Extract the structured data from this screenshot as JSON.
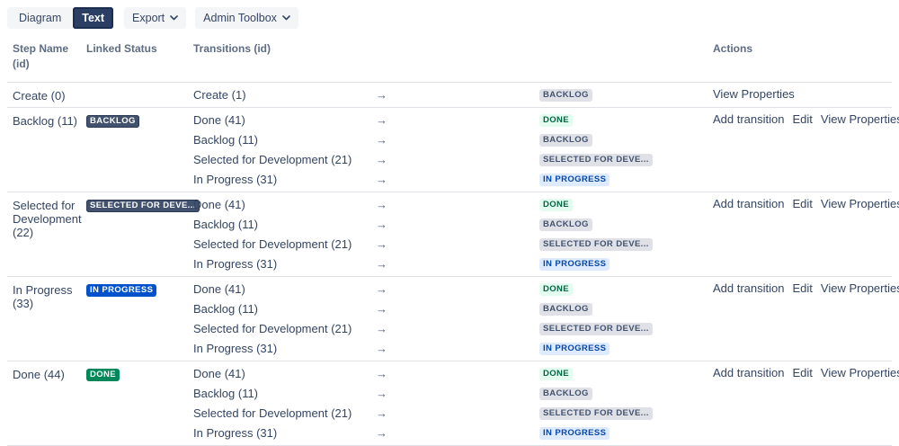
{
  "toolbar": {
    "view_toggle": {
      "diagram_label": "Diagram",
      "text_label": "Text",
      "selected": "Text"
    },
    "export_label": "Export",
    "admin_toolbox_label": "Admin Toolbox"
  },
  "icons": {
    "arrow_right": "→",
    "chevron_down": "⌄"
  },
  "table": {
    "headers": {
      "step": "Step Name (id)",
      "linked_status": "Linked Status",
      "transitions": "Transitions (id)",
      "actions": "Actions"
    },
    "rows": [
      {
        "step": "Create (0)",
        "status": null,
        "transitions": [
          {
            "name": "Create (1)",
            "target": "BACKLOG",
            "appearance": "gray"
          }
        ],
        "actions": [
          "View Properties"
        ]
      },
      {
        "step": "Backlog (11)",
        "status": {
          "label": "BACKLOG",
          "appearance": "gray"
        },
        "transitions": [
          {
            "name": "Done (41)",
            "target": "DONE",
            "appearance": "green"
          },
          {
            "name": "Backlog (11)",
            "target": "BACKLOG",
            "appearance": "gray"
          },
          {
            "name": "Selected for Development (21)",
            "target": "SELECTED FOR DEVE...",
            "appearance": "gray"
          },
          {
            "name": "In Progress (31)",
            "target": "IN PROGRESS",
            "appearance": "blue"
          }
        ],
        "actions": [
          "Add transition",
          "Edit",
          "View Properties"
        ]
      },
      {
        "step": "Selected for Development (22)",
        "status": {
          "label": "SELECTED FOR DEVE...",
          "appearance": "gray"
        },
        "transitions": [
          {
            "name": "Done (41)",
            "target": "DONE",
            "appearance": "green"
          },
          {
            "name": "Backlog (11)",
            "target": "BACKLOG",
            "appearance": "gray"
          },
          {
            "name": "Selected for Development (21)",
            "target": "SELECTED FOR DEVE...",
            "appearance": "gray"
          },
          {
            "name": "In Progress (31)",
            "target": "IN PROGRESS",
            "appearance": "blue"
          }
        ],
        "actions": [
          "Add transition",
          "Edit",
          "View Properties"
        ]
      },
      {
        "step": "In Progress (33)",
        "status": {
          "label": "IN PROGRESS",
          "appearance": "blue"
        },
        "transitions": [
          {
            "name": "Done (41)",
            "target": "DONE",
            "appearance": "green"
          },
          {
            "name": "Backlog (11)",
            "target": "BACKLOG",
            "appearance": "gray"
          },
          {
            "name": "Selected for Development (21)",
            "target": "SELECTED FOR DEVE...",
            "appearance": "gray"
          },
          {
            "name": "In Progress (31)",
            "target": "IN PROGRESS",
            "appearance": "blue"
          }
        ],
        "actions": [
          "Add transition",
          "Edit",
          "View Properties"
        ]
      },
      {
        "step": "Done (44)",
        "status": {
          "label": "DONE",
          "appearance": "green"
        },
        "transitions": [
          {
            "name": "Done (41)",
            "target": "DONE",
            "appearance": "green"
          },
          {
            "name": "Backlog (11)",
            "target": "BACKLOG",
            "appearance": "gray"
          },
          {
            "name": "Selected for Development (21)",
            "target": "SELECTED FOR DEVE...",
            "appearance": "gray"
          },
          {
            "name": "In Progress (31)",
            "target": "IN PROGRESS",
            "appearance": "blue"
          }
        ],
        "actions": [
          "Add transition",
          "Edit",
          "View Properties"
        ]
      }
    ]
  },
  "colors": {
    "selected_toggle_bg": "#2A3F63",
    "button_bg": "#F4F5F7",
    "text_primary": "#344563",
    "header_text": "#5E6C84",
    "divider": "#DFE1E6",
    "lozenge_bold_gray": "#42526E",
    "lozenge_bold_blue": "#0052CC",
    "lozenge_bold_green": "#00875A",
    "lozenge_subtle_gray_bg": "#DFE1E6",
    "lozenge_subtle_blue_bg": "#DEEBFF",
    "lozenge_subtle_blue_text": "#0747A6",
    "lozenge_subtle_green_bg": "#E3FCEF",
    "lozenge_subtle_green_text": "#006644"
  }
}
